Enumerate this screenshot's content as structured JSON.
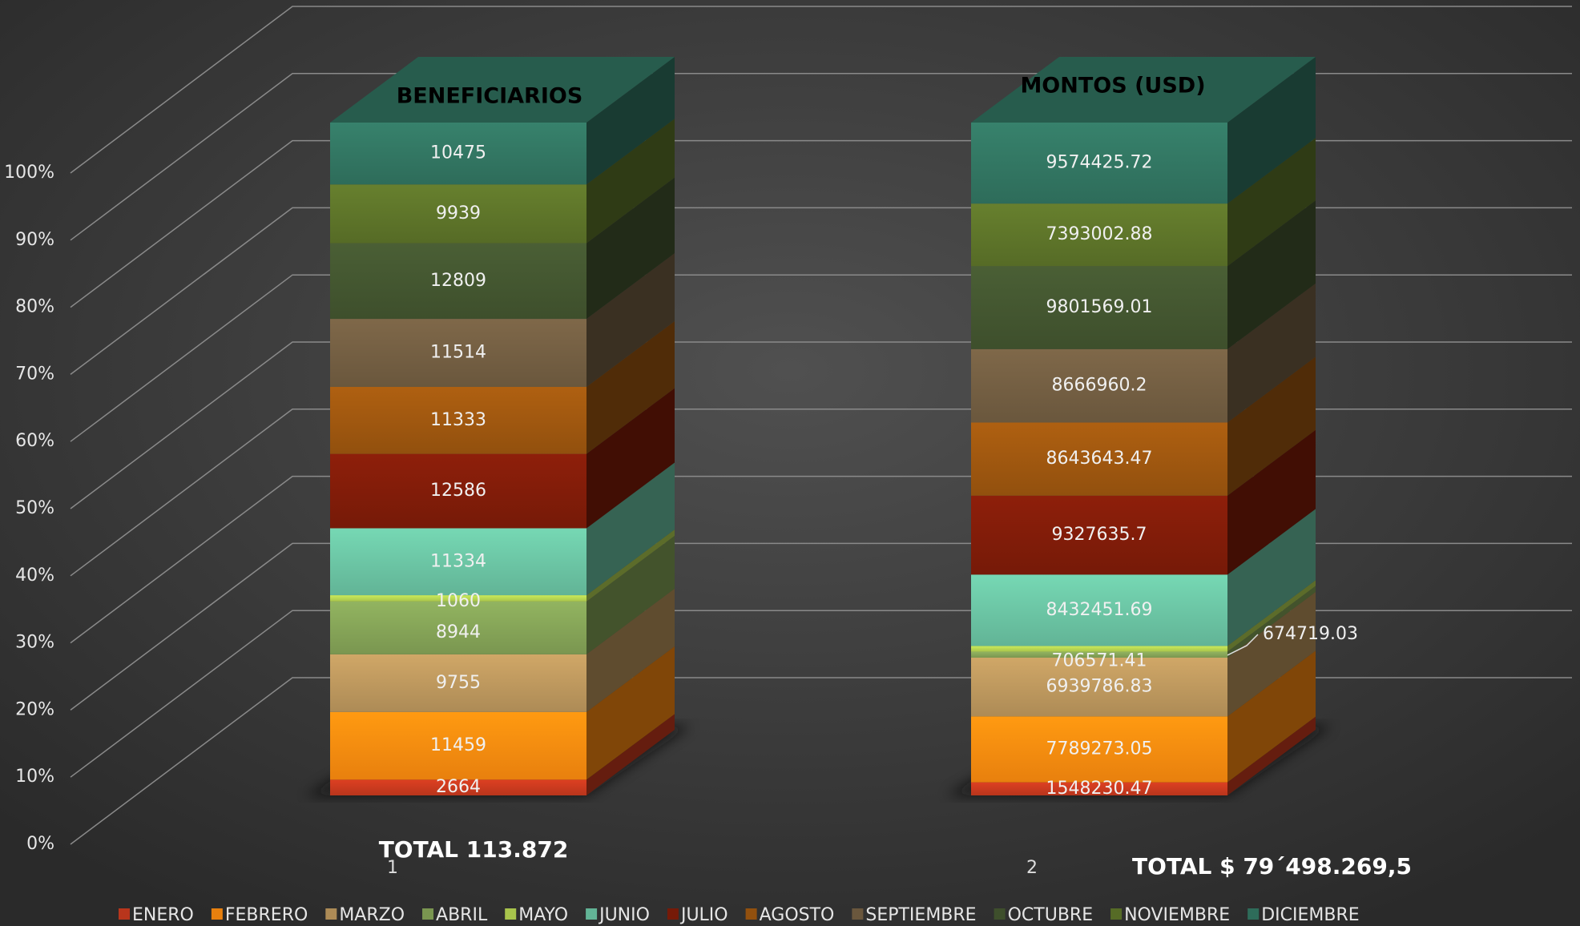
{
  "chart_data": {
    "type": "bar3d_stacked_percent",
    "categories": [
      "1",
      "2"
    ],
    "category_titles": [
      "BENEFICIARIOS",
      "MONTOS (USD)"
    ],
    "totals": [
      "TOTAL 113.872",
      "TOTAL $ 79´498.269,5"
    ],
    "series": [
      {
        "name": "ENERO",
        "color": "#b8351c",
        "values": [
          2664,
          1548230.47
        ]
      },
      {
        "name": "FEBRERO",
        "color": "#e8800e",
        "values": [
          11459,
          7789273.05
        ]
      },
      {
        "name": "MARZO",
        "color": "#ad8b56",
        "values": [
          9755,
          6939786.83
        ]
      },
      {
        "name": "ABRIL",
        "color": "#7a9650",
        "values": [
          8944,
          706571.41
        ]
      },
      {
        "name": "MAYO",
        "color": "#a8c44c",
        "values": [
          1060,
          674719.03
        ]
      },
      {
        "name": "JUNIO",
        "color": "#62b496",
        "values": [
          11334,
          8432451.69
        ]
      },
      {
        "name": "JULIO",
        "color": "#761a08",
        "values": [
          12586,
          9327635.7
        ]
      },
      {
        "name": "AGOSTO",
        "color": "#92500e",
        "values": [
          11333,
          8643643.47
        ]
      },
      {
        "name": "SEPTIEMBRE",
        "color": "#6a573d",
        "values": [
          11514,
          8666960.2
        ]
      },
      {
        "name": "OCTUBRE",
        "color": "#3e4f2c",
        "values": [
          12809,
          9801569.01
        ]
      },
      {
        "name": "NOVIEMBRE",
        "color": "#566b26",
        "values": [
          9939,
          7393002.88
        ]
      },
      {
        "name": "DICIEMBRE",
        "color": "#2e6c5a",
        "values": [
          10475,
          9574425.72
        ]
      }
    ],
    "ylim": [
      0,
      100
    ],
    "yticks": [
      {
        "value": 0,
        "label": "0%"
      },
      {
        "value": 10,
        "label": "10%"
      },
      {
        "value": 20,
        "label": "20%"
      },
      {
        "value": 30,
        "label": "30%"
      },
      {
        "value": 40,
        "label": "40%"
      },
      {
        "value": 50,
        "label": "50%"
      },
      {
        "value": 60,
        "label": "60%"
      },
      {
        "value": 70,
        "label": "70%"
      },
      {
        "value": 80,
        "label": "80%"
      },
      {
        "value": 90,
        "label": "90%"
      },
      {
        "value": 100,
        "label": "100%"
      }
    ],
    "grid": true,
    "legend": "bottom"
  }
}
